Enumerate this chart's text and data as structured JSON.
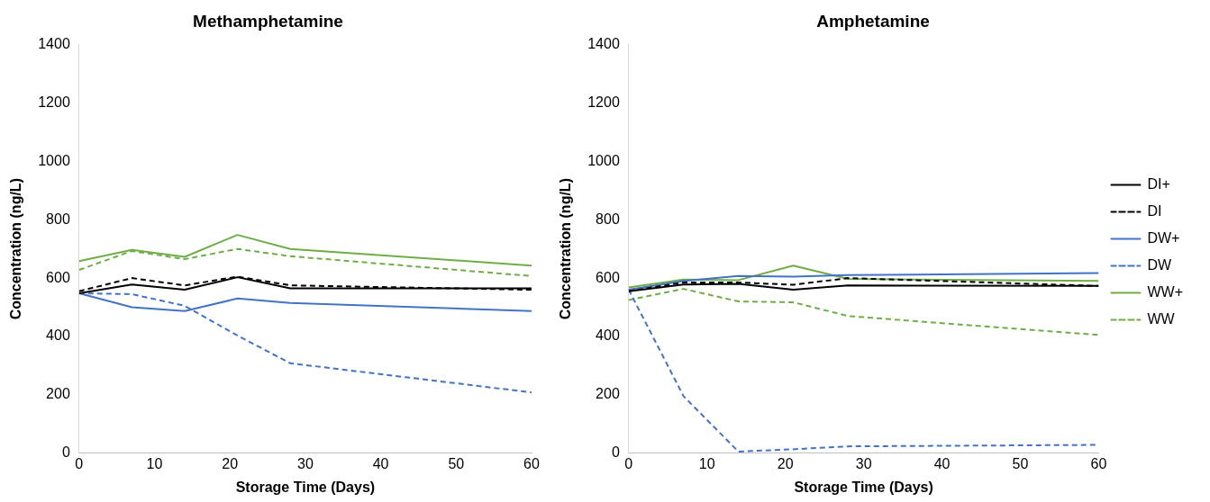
{
  "chart_data": [
    {
      "type": "line",
      "title": "Methamphetamine",
      "xlabel": "Storage Time (Days)",
      "ylabel": "Concentration (ng/L)",
      "x": [
        0,
        7,
        14,
        21,
        28,
        60
      ],
      "xlim": [
        0,
        60
      ],
      "xticks": [
        0,
        10,
        20,
        30,
        40,
        50,
        60
      ],
      "ylim": [
        0,
        1400
      ],
      "yticks": [
        0,
        200,
        400,
        600,
        800,
        1000,
        1200,
        1400
      ],
      "grid": false,
      "legend": false,
      "marker": "none",
      "series": [
        {
          "color": "#000000",
          "line_style": "solid",
          "values": [
            548,
            578,
            560,
            603,
            565,
            565
          ]
        },
        {
          "color": "#000000",
          "line_style": "dashed",
          "values": [
            555,
            600,
            575,
            605,
            575,
            560
          ]
        },
        {
          "color": "#4472c4",
          "line_style": "solid",
          "values": [
            548,
            500,
            487,
            530,
            515,
            487
          ]
        },
        {
          "color": "#4472c4",
          "line_style": "dashed",
          "values": [
            548,
            545,
            505,
            403,
            308,
            208
          ]
        },
        {
          "color": "#70ad47",
          "line_style": "solid",
          "values": [
            658,
            697,
            673,
            748,
            700,
            643
          ]
        },
        {
          "color": "#70ad47",
          "line_style": "dashed",
          "values": [
            628,
            693,
            665,
            700,
            675,
            607
          ]
        }
      ]
    },
    {
      "type": "line",
      "title": "Amphetamine",
      "xlabel": "Storage Time (Days)",
      "ylabel": "Concentration (ng/L)",
      "x": [
        0,
        7,
        14,
        21,
        28,
        60
      ],
      "xlim": [
        0,
        60
      ],
      "xticks": [
        0,
        10,
        20,
        30,
        40,
        50,
        60
      ],
      "ylim": [
        0,
        1400
      ],
      "yticks": [
        0,
        200,
        400,
        600,
        800,
        1000,
        1200,
        1400
      ],
      "grid": false,
      "legend": "right",
      "marker": "none",
      "series": [
        {
          "name": "DI+",
          "color": "#000000",
          "line_style": "solid",
          "values": [
            555,
            578,
            580,
            560,
            575,
            573
          ]
        },
        {
          "name": "DI",
          "color": "#000000",
          "line_style": "dashed",
          "values": [
            555,
            585,
            585,
            577,
            600,
            573
          ]
        },
        {
          "name": "DW+",
          "color": "#4472c4",
          "line_style": "solid",
          "values": [
            560,
            590,
            607,
            605,
            610,
            617
          ]
        },
        {
          "name": "DW",
          "color": "#4472c4",
          "line_style": "dashed",
          "values": [
            560,
            195,
            5,
            13,
            23,
            28
          ]
        },
        {
          "name": "WW+",
          "color": "#70ad47",
          "line_style": "solid",
          "values": [
            568,
            595,
            593,
            643,
            597,
            590
          ]
        },
        {
          "name": "WW",
          "color": "#70ad47",
          "line_style": "dashed",
          "values": [
            525,
            563,
            520,
            517,
            470,
            405
          ]
        }
      ]
    }
  ]
}
